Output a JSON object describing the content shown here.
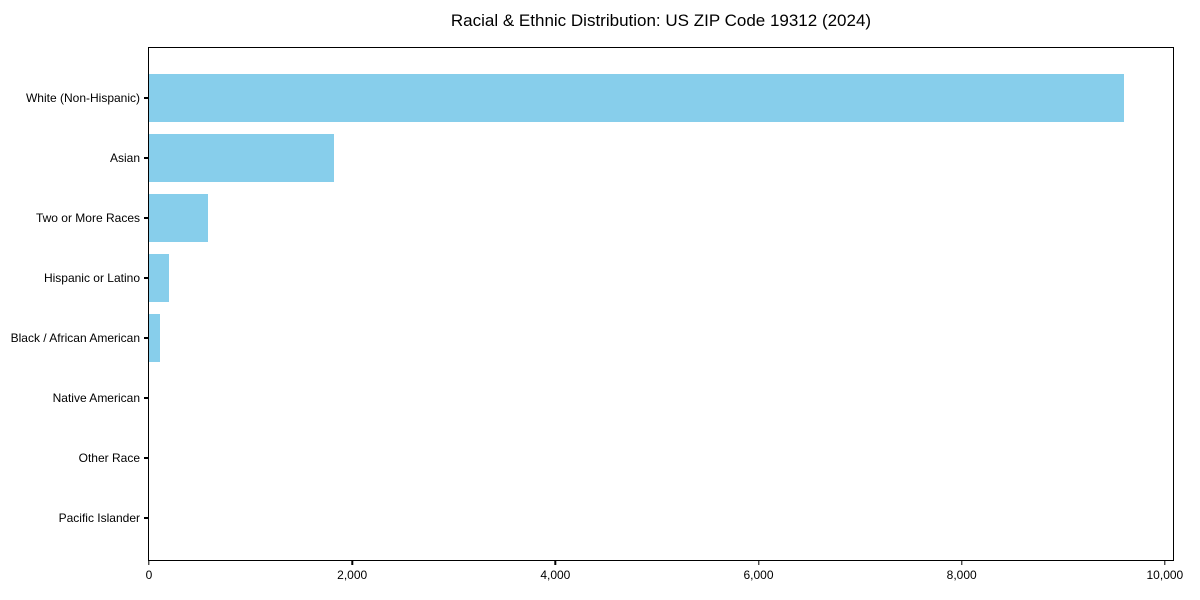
{
  "title": "Racial & Ethnic Distribution: US ZIP Code 19312 (2024)",
  "colors": {
    "bar": "#87CEEB",
    "axis": "#000000",
    "text": "#000000",
    "background": "#FFFFFF"
  },
  "chart_data": {
    "type": "bar",
    "orientation": "horizontal",
    "title": "Racial & Ethnic Distribution: US ZIP Code 19312 (2024)",
    "categories": [
      "White (Non-Hispanic)",
      "Asian",
      "Two or More Races",
      "Hispanic or Latino",
      "Black / African American",
      "Native American",
      "Other Race",
      "Pacific Islander"
    ],
    "values": [
      9600,
      1820,
      585,
      200,
      110,
      0,
      0,
      0
    ],
    "xlabel": "",
    "ylabel": "",
    "xlim": [
      0,
      10080
    ],
    "xticks": [
      0,
      2000,
      4000,
      6000,
      8000,
      10000
    ],
    "xtick_labels": [
      "0",
      "2,000",
      "4,000",
      "6,000",
      "8,000",
      "10,000"
    ],
    "bar_color": "#87CEEB",
    "grid": false,
    "legend": null
  }
}
